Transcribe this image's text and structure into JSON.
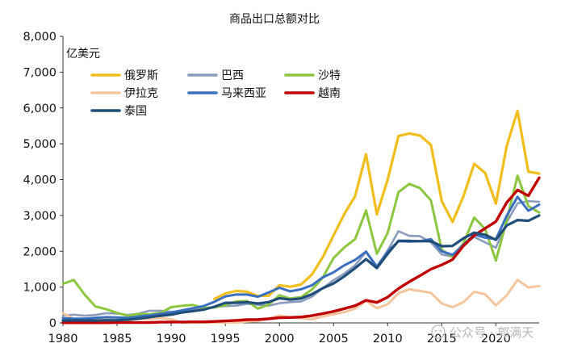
{
  "chart_data": {
    "type": "line",
    "title": "商品出口总额对比",
    "unit": "亿美元",
    "ylim": [
      0,
      8000
    ],
    "yticks": [
      0,
      1000,
      2000,
      3000,
      4000,
      5000,
      6000,
      7000,
      8000
    ],
    "ytick_labels": [
      "0",
      "1,000",
      "2,000",
      "3,000",
      "4,000",
      "5,000",
      "6,000",
      "7,000",
      "8,000"
    ],
    "xlim": [
      1980,
      2024
    ],
    "xticks": [
      1980,
      1985,
      1990,
      1995,
      2000,
      2005,
      2010,
      2015,
      2020
    ],
    "xtick_labels": [
      "1980",
      "1985",
      "1990",
      "1995",
      "2000",
      "2005",
      "2010",
      "2015",
      "2020"
    ],
    "legend_position": "top-left",
    "x": [
      1980,
      1981,
      1982,
      1983,
      1984,
      1985,
      1986,
      1987,
      1988,
      1989,
      1990,
      1991,
      1992,
      1993,
      1994,
      1995,
      1996,
      1997,
      1998,
      1999,
      2000,
      2001,
      2002,
      2003,
      2004,
      2005,
      2006,
      2007,
      2008,
      2009,
      2010,
      2011,
      2012,
      2013,
      2014,
      2015,
      2016,
      2017,
      2018,
      2019,
      2020,
      2021,
      2022,
      2023,
      2024
    ],
    "series": [
      {
        "name": "俄罗斯",
        "color": "#f2be1c",
        "width": 3.2,
        "values": [
          null,
          null,
          null,
          null,
          null,
          null,
          null,
          null,
          null,
          null,
          null,
          null,
          null,
          null,
          670,
          820,
          890,
          870,
          750,
          760,
          1050,
          1010,
          1070,
          1350,
          1830,
          2440,
          3040,
          3540,
          4710,
          3030,
          4000,
          5220,
          5290,
          5230,
          4970,
          3400,
          2820,
          3530,
          4440,
          4190,
          3330,
          4940,
          5920,
          4220,
          4170
        ]
      },
      {
        "name": "巴西",
        "color": "#8a9bbd",
        "width": 2.6,
        "values": [
          200,
          230,
          200,
          220,
          270,
          260,
          220,
          260,
          340,
          340,
          310,
          320,
          360,
          390,
          440,
          470,
          480,
          530,
          510,
          480,
          550,
          580,
          600,
          730,
          970,
          1190,
          1380,
          1610,
          1980,
          1530,
          2020,
          2560,
          2430,
          2420,
          2250,
          1910,
          1850,
          2180,
          2400,
          2250,
          2100,
          2810,
          3340,
          3400,
          3380
        ]
      },
      {
        "name": "沙特",
        "color": "#8dc63f",
        "width": 3,
        "values": [
          1090,
          1200,
          790,
          460,
          380,
          280,
          200,
          250,
          240,
          280,
          440,
          480,
          500,
          420,
          430,
          500,
          600,
          610,
          400,
          510,
          770,
          680,
          720,
          930,
          1260,
          1810,
          2110,
          2340,
          3140,
          1930,
          2510,
          3650,
          3880,
          3760,
          3420,
          2040,
          1840,
          2220,
          2940,
          2620,
          1740,
          2860,
          4110,
          3260,
          3080
        ]
      },
      {
        "name": "伊拉克",
        "color": "#f5c59d",
        "width": 3,
        "values": [
          270,
          110,
          100,
          90,
          100,
          110,
          80,
          110,
          110,
          140,
          100,
          10,
          10,
          10,
          10,
          10,
          10,
          40,
          50,
          120,
          200,
          160,
          130,
          100,
          180,
          240,
          300,
          400,
          620,
          410,
          520,
          830,
          940,
          890,
          840,
          540,
          440,
          580,
          870,
          800,
          490,
          770,
          1200,
          990,
          1030
        ]
      },
      {
        "name": "马来西亚",
        "color": "#3b6fc0",
        "width": 3,
        "values": [
          130,
          120,
          120,
          140,
          160,
          150,
          140,
          180,
          210,
          250,
          290,
          350,
          410,
          470,
          590,
          740,
          790,
          790,
          730,
          850,
          980,
          880,
          940,
          1050,
          1270,
          1410,
          1610,
          1760,
          1990,
          1570,
          1990,
          2280,
          2270,
          2280,
          2340,
          2000,
          1900,
          2180,
          2470,
          2380,
          2340,
          2990,
          3520,
          3130,
          3300
        ]
      },
      {
        "name": "越南",
        "color": "#c00000",
        "width": 3.4,
        "values": [
          5,
          5,
          5,
          5,
          5,
          8,
          10,
          10,
          12,
          20,
          25,
          25,
          30,
          30,
          40,
          55,
          70,
          90,
          95,
          115,
          145,
          150,
          165,
          200,
          260,
          320,
          400,
          480,
          630,
          570,
          720,
          960,
          1150,
          1320,
          1500,
          1620,
          1770,
          2150,
          2440,
          2640,
          2830,
          3360,
          3710,
          3550,
          4050
        ]
      },
      {
        "name": "泰国",
        "color": "#1f4e79",
        "width": 3.2,
        "values": [
          65,
          70,
          70,
          65,
          75,
          75,
          90,
          120,
          160,
          200,
          230,
          290,
          330,
          370,
          450,
          560,
          560,
          580,
          540,
          580,
          690,
          650,
          680,
          800,
          970,
          1100,
          1300,
          1530,
          1780,
          1530,
          1930,
          2290,
          2290,
          2280,
          2280,
          2140,
          2150,
          2360,
          2520,
          2460,
          2320,
          2720,
          2870,
          2850,
          3000
        ]
      }
    ]
  },
  "watermark": "公众号 · 郭满天"
}
